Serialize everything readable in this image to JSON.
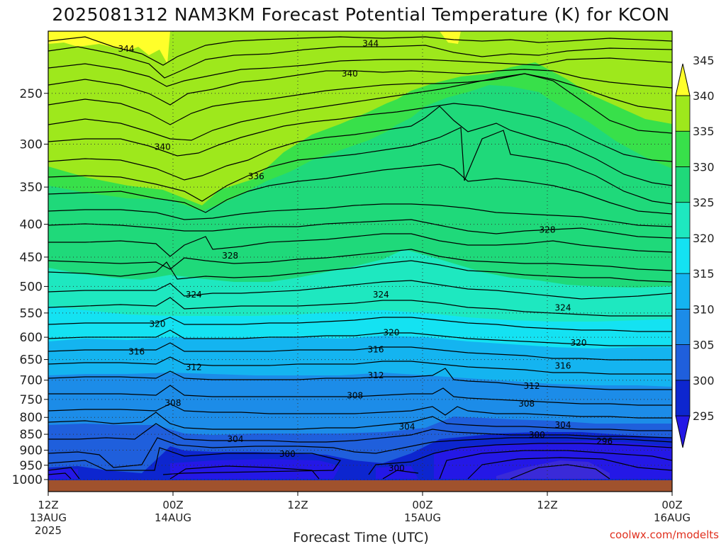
{
  "chart_data": {
    "type": "contour",
    "title": "2025081312 NAM3KM Forecast Potential Temperature (K) for KCON",
    "xlabel": "Forecast Time (UTC)",
    "ylabel": "",
    "x_ticks": [
      {
        "label": "12Z",
        "sublabel": "13AUG",
        "sublabel2": "2025"
      },
      {
        "label": "00Z",
        "sublabel": "14AUG",
        "sublabel2": ""
      },
      {
        "label": "12Z",
        "sublabel": "",
        "sublabel2": ""
      },
      {
        "label": "00Z",
        "sublabel": "15AUG",
        "sublabel2": ""
      },
      {
        "label": "12Z",
        "sublabel": "",
        "sublabel2": ""
      },
      {
        "label": "00Z",
        "sublabel": "16AUG",
        "sublabel2": ""
      }
    ],
    "x_range_hours": [
      0,
      60
    ],
    "y_axis": "pressure (hPa), reversed, log scale",
    "y_ticks": [
      250,
      300,
      350,
      400,
      450,
      500,
      550,
      600,
      650,
      700,
      750,
      800,
      850,
      900,
      950,
      1000
    ],
    "y_range": [
      1000,
      200
    ],
    "grid": true,
    "colorbar": {
      "ticks": [
        295,
        300,
        305,
        310,
        315,
        320,
        325,
        330,
        335,
        340,
        345
      ],
      "colors": [
        "#2418e6",
        "#0d26cf",
        "#1f5fdc",
        "#1c8ce8",
        "#14b4f0",
        "#14e2f2",
        "#1ee8c0",
        "#1fd97a",
        "#38e04a",
        "#9ee81c",
        "#ffff2a"
      ],
      "extend": "both"
    },
    "contour_labels": [
      {
        "text": "344",
        "hour": 7.5,
        "pressure": 213
      },
      {
        "text": "344",
        "hour": 31,
        "pressure": 209
      },
      {
        "text": "340",
        "hour": 29,
        "pressure": 233
      },
      {
        "text": "340",
        "hour": 11,
        "pressure": 303
      },
      {
        "text": "336",
        "hour": 20,
        "pressure": 337
      },
      {
        "text": "328",
        "hour": 17.5,
        "pressure": 448
      },
      {
        "text": "328",
        "hour": 48,
        "pressure": 408
      },
      {
        "text": "324",
        "hour": 14,
        "pressure": 515
      },
      {
        "text": "324",
        "hour": 32,
        "pressure": 515
      },
      {
        "text": "324",
        "hour": 49.5,
        "pressure": 540
      },
      {
        "text": "320",
        "hour": 10.5,
        "pressure": 572
      },
      {
        "text": "320",
        "hour": 33,
        "pressure": 590
      },
      {
        "text": "320",
        "hour": 51,
        "pressure": 612
      },
      {
        "text": "316",
        "hour": 8.5,
        "pressure": 632
      },
      {
        "text": "316",
        "hour": 31.5,
        "pressure": 627
      },
      {
        "text": "316",
        "hour": 49.5,
        "pressure": 665
      },
      {
        "text": "312",
        "hour": 14,
        "pressure": 668
      },
      {
        "text": "312",
        "hour": 31.5,
        "pressure": 688
      },
      {
        "text": "312",
        "hour": 46.5,
        "pressure": 715
      },
      {
        "text": "308",
        "hour": 12,
        "pressure": 760
      },
      {
        "text": "308",
        "hour": 29.5,
        "pressure": 740
      },
      {
        "text": "308",
        "hour": 46,
        "pressure": 762
      },
      {
        "text": "304",
        "hour": 18,
        "pressure": 865
      },
      {
        "text": "304",
        "hour": 34.5,
        "pressure": 827
      },
      {
        "text": "304",
        "hour": 49.5,
        "pressure": 822
      },
      {
        "text": "300",
        "hour": 23,
        "pressure": 912
      },
      {
        "text": "300",
        "hour": 33.5,
        "pressure": 960
      },
      {
        "text": "300",
        "hour": 47,
        "pressure": 852
      },
      {
        "text": "296",
        "hour": 53.5,
        "pressure": 872
      }
    ]
  },
  "credit": "coolwx.com/modelts"
}
